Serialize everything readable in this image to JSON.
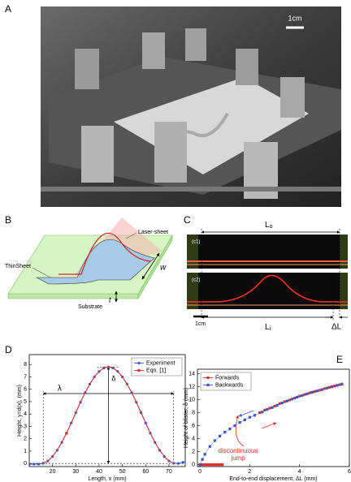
{
  "panel_labels": [
    "A",
    "B",
    "C",
    "D",
    "E"
  ],
  "photo": {
    "scale_label": "1cm"
  },
  "diagram_b": {
    "laser": "Laser-sheet",
    "sheet": "ThinSheet",
    "substrate": "Substrate",
    "width": "w",
    "thickness": "t"
  },
  "diagram_c": {
    "top_length": {
      "base": "L",
      "sub": "o"
    },
    "inner_length": {
      "base": "L",
      "sub": "i"
    },
    "frame1": "(c1)",
    "frame2": "(c2)",
    "scale_label": "1cm",
    "delta": "ΔL"
  },
  "chart_data": [
    {
      "type": "line",
      "x_label": "Length, x (mm)",
      "y_label": "Height, y=d(x), (mm)",
      "x": [
        10,
        12,
        14,
        16,
        18,
        20,
        22,
        24,
        26,
        28,
        30,
        32,
        34,
        36,
        38,
        40,
        42,
        44,
        46,
        48,
        50,
        52,
        54,
        56,
        58,
        60,
        62,
        64,
        66,
        68,
        70,
        72,
        74,
        76,
        78
      ],
      "series": [
        {
          "name": "Experiment",
          "color": "#3a55c8",
          "marker": "circle",
          "values": [
            -0.05,
            -0.05,
            -0.05,
            0.02,
            0.2,
            0.56,
            1.07,
            1.71,
            2.45,
            3.27,
            4.11,
            4.95,
            5.73,
            6.42,
            7.0,
            7.44,
            7.71,
            7.8,
            7.71,
            7.44,
            7.0,
            6.42,
            5.73,
            4.95,
            4.11,
            3.27,
            2.45,
            1.71,
            1.07,
            0.56,
            0.2,
            0.02,
            0.0,
            0.1,
            0.2
          ]
        },
        {
          "name": "Eqn. [1]",
          "color": "#e0302a",
          "marker": "square",
          "marker_x": [
            26
          ],
          "values": [
            null,
            null,
            null,
            0.02,
            0.2,
            0.56,
            1.07,
            1.71,
            2.45,
            3.27,
            4.11,
            4.95,
            5.73,
            6.42,
            7.0,
            7.44,
            7.71,
            7.8,
            7.71,
            7.44,
            7.0,
            6.42,
            5.73,
            4.95,
            4.11,
            3.27,
            2.45,
            1.71,
            1.07,
            0.56,
            0.2,
            0.02,
            null,
            null,
            null
          ]
        }
      ],
      "annotations": [
        {
          "text": "λ"
        },
        {
          "text": "δ"
        }
      ],
      "xlim": [
        10,
        77
      ],
      "ylim": [
        -0.25,
        8.8
      ],
      "xticks": [
        20,
        30,
        40,
        50,
        60,
        70
      ],
      "yticks": [
        0,
        1,
        2,
        3,
        4,
        5,
        6,
        7,
        8
      ],
      "legend": "upper right"
    },
    {
      "type": "scatter",
      "x_label": "End-to-end displacement, ΔL (mm)",
      "y_label": "Height of blister, δ (mm)",
      "series": [
        {
          "name": "Forwards",
          "color": "#e0302a",
          "marker": "square",
          "x": [
            0,
            0.1,
            0.2,
            0.3,
            0.4,
            0.5,
            0.6,
            0.7,
            0.8,
            0.9,
            1.6,
            2.4,
            2.6,
            2.8,
            3.0,
            3.2,
            3.4,
            3.6,
            3.8,
            4.0,
            4.2,
            4.4,
            4.6,
            4.8,
            5.0,
            5.2,
            5.4,
            5.6,
            5.7
          ],
          "values": [
            0,
            0,
            0,
            0,
            0,
            0,
            0,
            0,
            0,
            0,
            null,
            8.0,
            8.4,
            8.7,
            9.0,
            9.4,
            9.7,
            9.95,
            10.25,
            10.55,
            10.8,
            11.05,
            11.25,
            11.45,
            11.7,
            11.9,
            12.1,
            12.3,
            12.4
          ]
        },
        {
          "name": "Backwards",
          "color": "#3a55c8",
          "marker": "square",
          "x": [
            0,
            0.1,
            0.2,
            0.4,
            0.6,
            0.8,
            1.0,
            1.2,
            1.4,
            1.6,
            1.8,
            2.0,
            2.2,
            2.5,
            2.7,
            2.9,
            3.1,
            3.3,
            3.5,
            3.7,
            3.9,
            4.1,
            4.3,
            4.5,
            4.7,
            4.9,
            5.1,
            5.3,
            5.5,
            5.7
          ],
          "values": [
            0,
            0.8,
            1.6,
            2.8,
            3.7,
            4.4,
            5.0,
            5.5,
            6.0,
            6.5,
            6.9,
            7.3,
            7.6,
            8.1,
            8.5,
            8.8,
            9.15,
            9.5,
            9.8,
            10.1,
            10.4,
            10.65,
            10.9,
            11.15,
            11.35,
            11.55,
            11.8,
            12.0,
            12.2,
            12.4
          ]
        }
      ],
      "annotations": [
        {
          "lines": [
            "discontinuous",
            "jump"
          ]
        }
      ],
      "xlim": [
        -0.1,
        6
      ],
      "ylim": [
        -0.3,
        14.7
      ],
      "xticks": [
        0,
        2,
        4,
        6
      ],
      "yticks": [
        0,
        2,
        4,
        6,
        8,
        10,
        12,
        14
      ],
      "legend": "upper left"
    }
  ]
}
